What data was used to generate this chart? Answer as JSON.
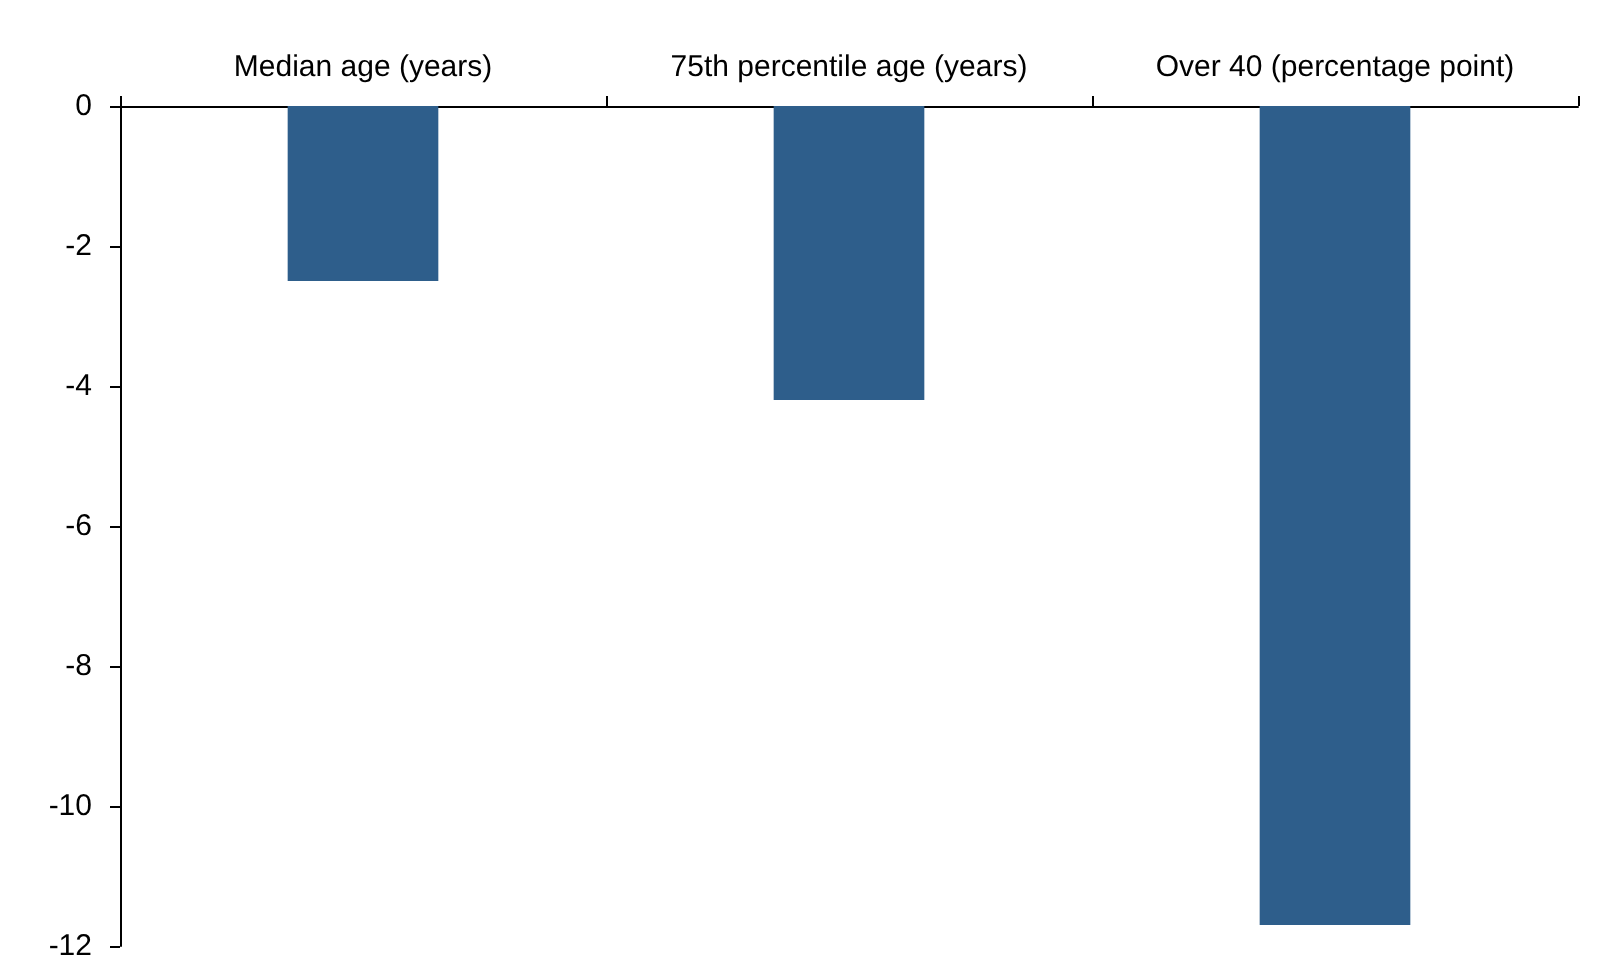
{
  "chart_data": {
    "type": "bar",
    "categories": [
      "Median age (years)",
      "75th percentile age (years)",
      "Over 40 (percentage point)"
    ],
    "values": [
      -2.5,
      -4.2,
      -11.7
    ],
    "color": "#2e5e8b",
    "ylim": [
      -12,
      0
    ],
    "yticks": [
      0,
      -2,
      -4,
      -6,
      -8,
      -10,
      -12
    ],
    "grid": false
  }
}
